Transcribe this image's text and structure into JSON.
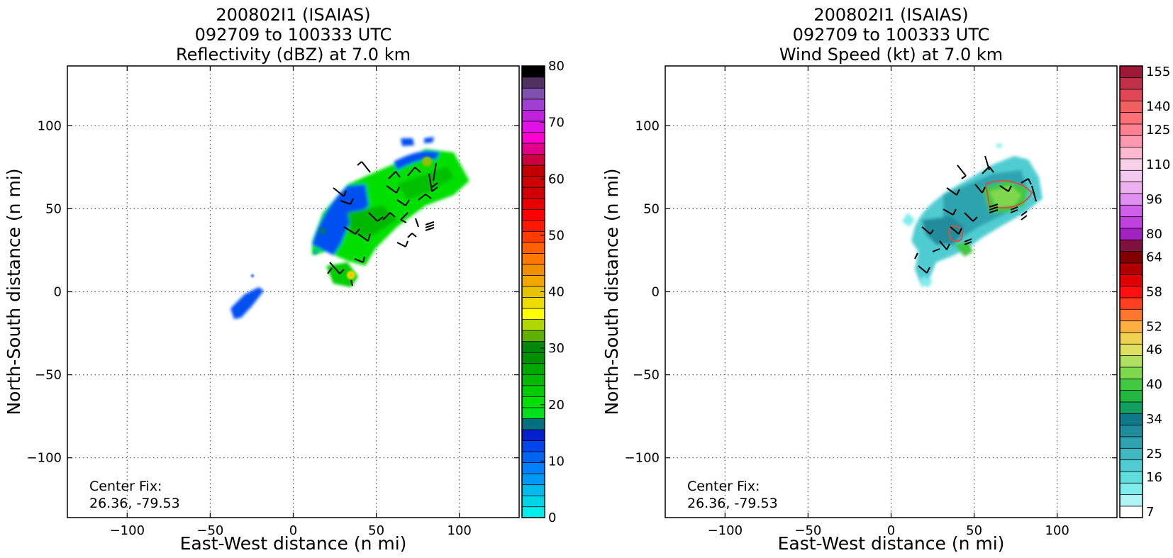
{
  "chart_data": [
    {
      "type": "heatmap",
      "title_lines": [
        "200802I1 (ISAIAS)",
        "092709 to 100333 UTC",
        "Reflectivity (dBZ) at 7.0 km"
      ],
      "xlabel": "East-West distance (n mi)",
      "ylabel": "North-South distance (n mi)",
      "xlim": [
        -136,
        136
      ],
      "ylim": [
        -136,
        136
      ],
      "xticks": [
        -100,
        -50,
        0,
        50,
        100
      ],
      "yticks": [
        -100,
        -50,
        0,
        50,
        100
      ],
      "xtick_labels": [
        "−100",
        "−50",
        "0",
        "50",
        "100"
      ],
      "ytick_labels": [
        "−100",
        "−50",
        "0",
        "50",
        "100"
      ],
      "grid": true,
      "center_fix_label": "Center Fix:",
      "center_fix_value": "26.36, -79.53",
      "colorbar": {
        "min": 0,
        "max": 80,
        "ticks": [
          0,
          10,
          20,
          30,
          40,
          50,
          60,
          70,
          80
        ],
        "tick_labels": [
          "0",
          "10",
          "20",
          "30",
          "40",
          "50",
          "60",
          "70",
          "80"
        ],
        "colors": [
          "#00eeee",
          "#00d4e6",
          "#00bcee",
          "#0099f5",
          "#0080ff",
          "#0066f0",
          "#0044ee",
          "#0020cc",
          "#007080",
          "#00e01c",
          "#00e000",
          "#00cc00",
          "#00b800",
          "#00a800",
          "#009000",
          "#00880a",
          "#60b000",
          "#b0d800",
          "#ffff00",
          "#eedc00",
          "#e8c400",
          "#f0a800",
          "#f09000",
          "#ff7800",
          "#ff6000",
          "#ff3c00",
          "#ff1800",
          "#ff0000",
          "#e80000",
          "#d00000",
          "#d00000",
          "#c00000",
          "#cc0040",
          "#e0008c",
          "#ff00d0",
          "#e010e6",
          "#c020e0",
          "#a040d0",
          "#8050b0",
          "#503060",
          "#000000"
        ],
        "n_levels": 41
      },
      "echo_regions": [
        {
          "label": "main band",
          "center": [
            60,
            52
          ],
          "extent_x": [
            15,
            108
          ],
          "extent_y": [
            20,
            92
          ]
        },
        {
          "label": "small cell",
          "center": [
            30,
            10
          ],
          "extent_x": [
            20,
            40
          ],
          "extent_y": [
            3,
            16
          ]
        },
        {
          "label": "weak echo",
          "center": [
            -30,
            -8
          ],
          "extent_x": [
            -38,
            -16
          ],
          "extent_y": [
            -16,
            10
          ]
        }
      ]
    },
    {
      "type": "heatmap",
      "title_lines": [
        "200802I1 (ISAIAS)",
        "092709 to 100333 UTC",
        "Wind Speed (kt) at 7.0 km"
      ],
      "xlabel": "East-West distance (n mi)",
      "ylabel": "North-South distance (n mi)",
      "xlim": [
        -136,
        136
      ],
      "ylim": [
        -136,
        136
      ],
      "xticks": [
        -100,
        -50,
        0,
        50,
        100
      ],
      "yticks": [
        -100,
        -50,
        0,
        50,
        100
      ],
      "xtick_labels": [
        "−100",
        "−50",
        "0",
        "50",
        "100"
      ],
      "ytick_labels": [
        "−100",
        "−50",
        "0",
        "50",
        "100"
      ],
      "grid": true,
      "center_fix_label": "Center Fix:",
      "center_fix_value": "26.36, -79.53",
      "colorbar": {
        "tick_labels": [
          "7",
          "16",
          "25",
          "34",
          "40",
          "46",
          "52",
          "58",
          "64",
          "80",
          "96",
          "110",
          "125",
          "140",
          "155"
        ],
        "colors": [
          "#ffffff",
          "#b0f6f6",
          "#80ecec",
          "#60dede",
          "#50ccd2",
          "#40b8c2",
          "#2ea4b0",
          "#208c9c",
          "#107888",
          "#10a060",
          "#20b840",
          "#40c840",
          "#80d850",
          "#b0e060",
          "#e0e060",
          "#f0d050",
          "#ffb040",
          "#ff7830",
          "#ff4020",
          "#ff1010",
          "#e00000",
          "#b00000",
          "#800000",
          "#801040",
          "#a020c0",
          "#c040e0",
          "#d060e8",
          "#e090f0",
          "#ecb0f0",
          "#f2c8f0",
          "#f8d0e8",
          "#ffb8d0",
          "#ff98b0",
          "#ff8090",
          "#ff7078",
          "#f06060",
          "#e04858",
          "#c03048",
          "#a01838"
        ],
        "n_levels": 39
      },
      "echo_regions": [
        {
          "label": "main wind area",
          "center": [
            62,
            50
          ],
          "extent_x": [
            12,
            95
          ],
          "extent_y": [
            3,
            88
          ]
        },
        {
          "label": "speed max",
          "center": [
            70,
            55
          ],
          "extent_x": [
            58,
            85
          ],
          "extent_y": [
            45,
            68
          ]
        }
      ]
    }
  ]
}
